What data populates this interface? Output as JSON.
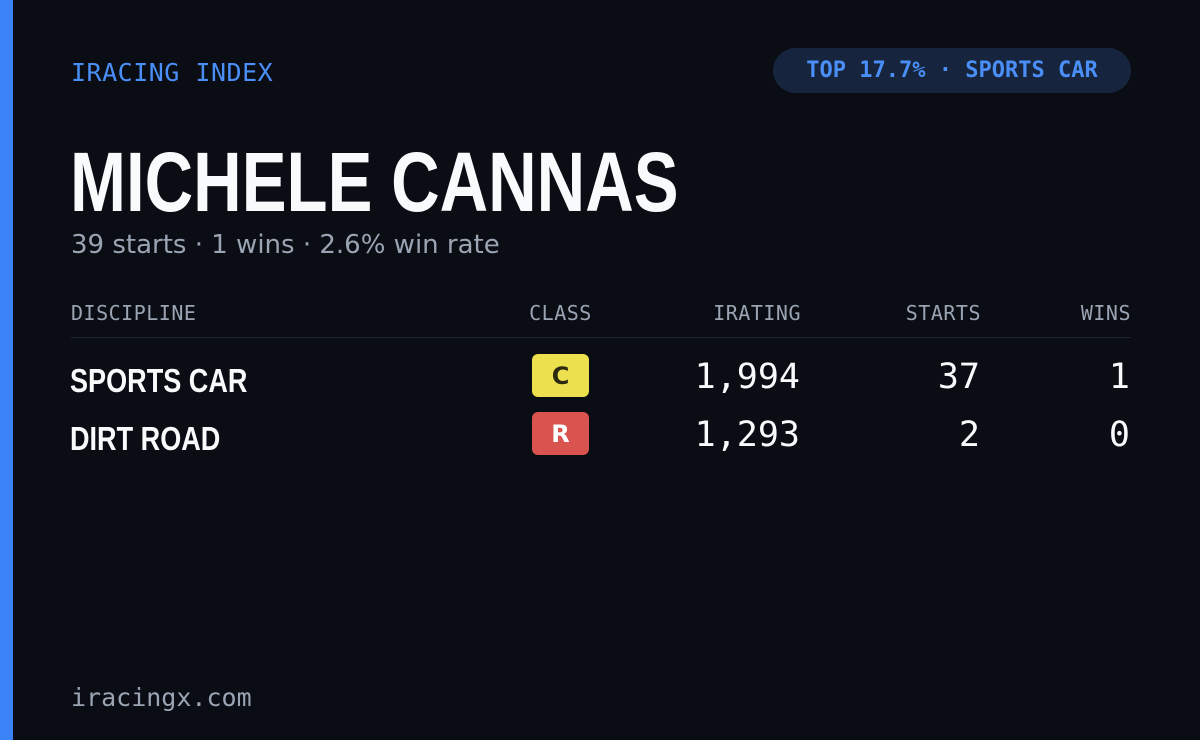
{
  "header": {
    "brand": "IRACING INDEX",
    "rank_pill": "TOP 17.7% · SPORTS CAR"
  },
  "driver": {
    "name": "MICHELE CANNAS",
    "summary": "39 starts · 1 wins · 2.6% win rate"
  },
  "table": {
    "columns": {
      "discipline": "DISCIPLINE",
      "class": "CLASS",
      "irating": "IRATING",
      "starts": "STARTS",
      "wins": "WINS"
    },
    "rows": [
      {
        "discipline": "SPORTS CAR",
        "class": "C",
        "class_color": "#ede04f",
        "class_text_color": "#2b2a10",
        "irating": "1,994",
        "starts": "37",
        "wins": "1"
      },
      {
        "discipline": "DIRT ROAD",
        "class": "R",
        "class_color": "#d9534f",
        "class_text_color": "#ffffff",
        "irating": "1,293",
        "starts": "2",
        "wins": "0"
      }
    ]
  },
  "footer": {
    "site": "iracingx.com"
  },
  "colors": {
    "background": "#0a0d14",
    "accent": "#3b82f6",
    "pill_background": "#17243d",
    "text_primary": "#f8fafc",
    "text_muted": "#9aa4b3"
  }
}
